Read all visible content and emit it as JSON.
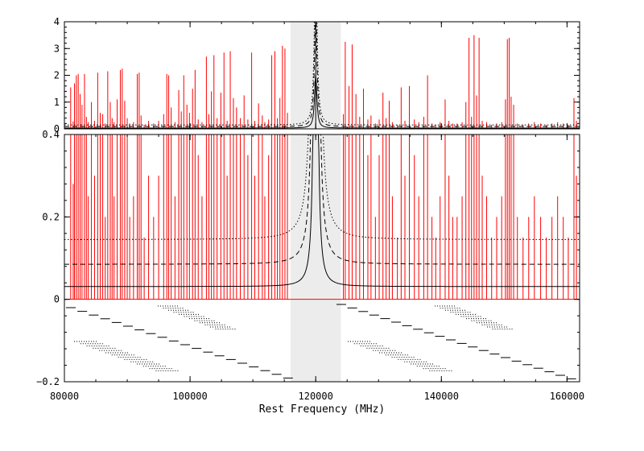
{
  "chart_data": {
    "type": "line",
    "xlabel": "Rest Frequency (MHz)",
    "xlim": [
      80000,
      162000
    ],
    "x_ticks": [
      "80000",
      "100000",
      "120000",
      "140000",
      "160000"
    ],
    "x_tick_values": [
      80000,
      100000,
      120000,
      140000,
      160000
    ],
    "colors": {
      "lines": "#ff0000",
      "band": "#ececec",
      "curves": "#000000"
    },
    "top_panel": {
      "ylim": [
        0,
        4
      ],
      "y_ticks": [
        "0",
        "1",
        "2",
        "3",
        "4"
      ],
      "y_tick_values": [
        0,
        1,
        2,
        3,
        4
      ]
    },
    "bottom_panel": {
      "ylim": [
        -0.2,
        0.4
      ],
      "y_ticks": [
        "−0.2",
        "0",
        "0.2",
        "0.4"
      ],
      "y_tick_values": [
        -0.2,
        0,
        0.2,
        0.4
      ]
    },
    "shaded_band": [
      116000,
      124000
    ],
    "resonance_center": 120000,
    "series": [
      {
        "style": "solid",
        "baseline": 0.031,
        "center": 120000
      },
      {
        "style": "dashed",
        "baseline": 0.085,
        "center": 120000
      },
      {
        "style": "dotted",
        "baseline": 0.145,
        "center": 120000
      }
    ],
    "lines": [
      [
        81000,
        1.55
      ],
      [
        81400,
        0.28
      ],
      [
        81600,
        1.7
      ],
      [
        81900,
        2.0
      ],
      [
        82200,
        2.05
      ],
      [
        82500,
        1.3
      ],
      [
        82800,
        0.9
      ],
      [
        83200,
        2.05
      ],
      [
        83500,
        0.45
      ],
      [
        83800,
        0.25
      ],
      [
        84300,
        1.0
      ],
      [
        84800,
        0.3
      ],
      [
        85300,
        2.1
      ],
      [
        85700,
        0.6
      ],
      [
        86100,
        0.55
      ],
      [
        86500,
        0.2
      ],
      [
        86900,
        2.15
      ],
      [
        87300,
        1.0
      ],
      [
        87600,
        0.4
      ],
      [
        87900,
        0.25
      ],
      [
        88400,
        1.1
      ],
      [
        88900,
        2.2
      ],
      [
        89200,
        2.25
      ],
      [
        89600,
        1.05
      ],
      [
        90000,
        0.4
      ],
      [
        90400,
        0.2
      ],
      [
        91000,
        0.25
      ],
      [
        91600,
        2.05
      ],
      [
        91900,
        2.1
      ],
      [
        92200,
        0.5
      ],
      [
        92700,
        0.15
      ],
      [
        93400,
        0.3
      ],
      [
        94200,
        0.2
      ],
      [
        95000,
        0.3
      ],
      [
        95800,
        0.55
      ],
      [
        96300,
        2.05
      ],
      [
        96600,
        2.0
      ],
      [
        97000,
        0.8
      ],
      [
        97600,
        0.25
      ],
      [
        98200,
        1.45
      ],
      [
        98600,
        0.65
      ],
      [
        99000,
        2.0
      ],
      [
        99500,
        0.9
      ],
      [
        99900,
        0.6
      ],
      [
        100400,
        1.5
      ],
      [
        100800,
        2.2
      ],
      [
        101300,
        0.35
      ],
      [
        101900,
        0.25
      ],
      [
        102600,
        2.7
      ],
      [
        103000,
        0.55
      ],
      [
        103400,
        1.4
      ],
      [
        103800,
        2.75
      ],
      [
        104300,
        0.4
      ],
      [
        104900,
        1.35
      ],
      [
        105400,
        2.85
      ],
      [
        105900,
        0.3
      ],
      [
        106400,
        2.9
      ],
      [
        106900,
        1.15
      ],
      [
        107400,
        0.8
      ],
      [
        108000,
        0.4
      ],
      [
        108600,
        1.25
      ],
      [
        109200,
        0.35
      ],
      [
        109800,
        2.85
      ],
      [
        110300,
        0.3
      ],
      [
        110900,
        0.95
      ],
      [
        111500,
        0.5
      ],
      [
        111900,
        0.25
      ],
      [
        112500,
        0.35
      ],
      [
        113000,
        2.75
      ],
      [
        113500,
        2.9
      ],
      [
        113900,
        0.4
      ],
      [
        114300,
        1.15
      ],
      [
        114700,
        3.1
      ],
      [
        115100,
        3.0
      ],
      [
        115500,
        0.6
      ],
      [
        124400,
        0.55
      ],
      [
        124700,
        3.25
      ],
      [
        125300,
        1.6
      ],
      [
        125800,
        3.15
      ],
      [
        126400,
        1.3
      ],
      [
        127000,
        0.45
      ],
      [
        127600,
        1.5
      ],
      [
        128300,
        0.35
      ],
      [
        128800,
        0.5
      ],
      [
        129500,
        0.2
      ],
      [
        130100,
        0.35
      ],
      [
        130700,
        1.35
      ],
      [
        131200,
        0.4
      ],
      [
        131700,
        1.05
      ],
      [
        132200,
        0.25
      ],
      [
        133000,
        0.15
      ],
      [
        133600,
        1.55
      ],
      [
        134200,
        0.3
      ],
      [
        134900,
        1.6
      ],
      [
        135700,
        0.35
      ],
      [
        136400,
        0.25
      ],
      [
        137200,
        0.45
      ],
      [
        137800,
        2.0
      ],
      [
        138500,
        0.2
      ],
      [
        139100,
        0.15
      ],
      [
        139800,
        0.25
      ],
      [
        140600,
        1.1
      ],
      [
        141200,
        0.3
      ],
      [
        141800,
        0.2
      ],
      [
        142500,
        0.2
      ],
      [
        143300,
        0.25
      ],
      [
        143900,
        1.0
      ],
      [
        144400,
        3.4
      ],
      [
        144800,
        0.45
      ],
      [
        145200,
        3.5
      ],
      [
        145600,
        1.25
      ],
      [
        146000,
        3.4
      ],
      [
        146500,
        0.3
      ],
      [
        147200,
        0.25
      ],
      [
        148000,
        0.15
      ],
      [
        148800,
        0.2
      ],
      [
        149600,
        0.25
      ],
      [
        150200,
        1.1
      ],
      [
        150500,
        3.35
      ],
      [
        150800,
        3.4
      ],
      [
        151100,
        1.2
      ],
      [
        151500,
        0.9
      ],
      [
        152100,
        0.2
      ],
      [
        153000,
        0.15
      ],
      [
        153900,
        0.2
      ],
      [
        154800,
        0.25
      ],
      [
        155800,
        0.2
      ],
      [
        156700,
        0.15
      ],
      [
        157600,
        0.2
      ],
      [
        158500,
        0.25
      ],
      [
        159400,
        0.2
      ],
      [
        160200,
        0.15
      ],
      [
        161100,
        1.15
      ],
      [
        161500,
        0.3
      ]
    ]
  }
}
